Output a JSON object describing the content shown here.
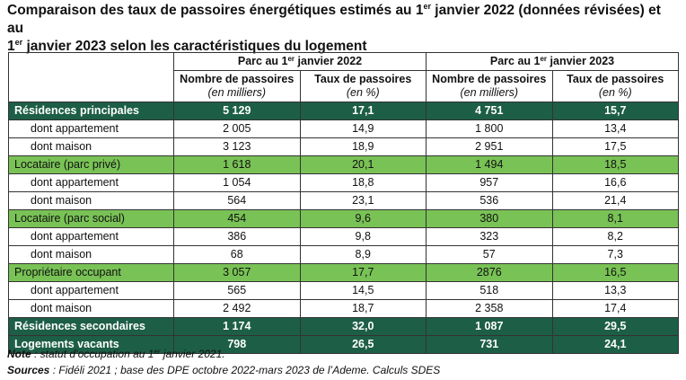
{
  "title": {
    "part1": "Comparaison des taux de passoires énergétiques estimés au 1",
    "sup1": "er",
    "part2": " janvier 2022 (données révisées) et au",
    "part3": "1",
    "sup2": "er",
    "part4": " janvier 2023 selon les caractéristiques du logement"
  },
  "header": {
    "group_2022": {
      "pre": "Parc au 1",
      "sup": "er",
      "post": " janvier 2022"
    },
    "group_2023": {
      "pre": "Parc au 1",
      "sup": "er",
      "post": " janvier 2023"
    },
    "col_nombre": "Nombre de passoires",
    "col_nombre_unit": "(en milliers)",
    "col_taux": "Taux de passoires",
    "col_taux_unit": "(en %)"
  },
  "rows": [
    {
      "label": "Résidences principales",
      "v": [
        "5 129",
        "17,1",
        "4 751",
        "15,7"
      ]
    },
    {
      "label": "dont appartement",
      "v": [
        "2 005",
        "14,9",
        "1 800",
        "13,4"
      ]
    },
    {
      "label": "dont maison",
      "v": [
        "3 123",
        "18,9",
        "2 951",
        "17,5"
      ]
    },
    {
      "label": "Locataire (parc privé)",
      "v": [
        "1 618",
        "20,1",
        "1 494",
        "18,5"
      ]
    },
    {
      "label": "dont appartement",
      "v": [
        "1 054",
        "18,8",
        "957",
        "16,6"
      ]
    },
    {
      "label": "dont maison",
      "v": [
        "564",
        "23,1",
        "536",
        "21,4"
      ]
    },
    {
      "label": "Locataire (parc social)",
      "v": [
        "454",
        "9,6",
        "380",
        "8,1"
      ]
    },
    {
      "label": "dont appartement",
      "v": [
        "386",
        "9,8",
        "323",
        "8,2"
      ]
    },
    {
      "label": "dont maison",
      "v": [
        "68",
        "8,9",
        "57",
        "7,3"
      ]
    },
    {
      "label": "Propriétaire occupant",
      "v": [
        "3 057",
        "17,7",
        "2876",
        "16,5"
      ]
    },
    {
      "label": "dont appartement",
      "v": [
        "565",
        "14,5",
        "518",
        "13,3"
      ]
    },
    {
      "label": "dont maison",
      "v": [
        "2 492",
        "18,7",
        "2 358",
        "17,4"
      ]
    },
    {
      "label": "Résidences secondaires",
      "v": [
        "1 174",
        "32,0",
        "1 087",
        "29,5"
      ]
    },
    {
      "label": "Logements vacants",
      "v": [
        "798",
        "26,5",
        "731",
        "24,1"
      ]
    }
  ],
  "notes": {
    "note_label": "Note",
    "note_text_pre": " : statut d’occupation au 1",
    "note_sup": "er",
    "note_text_post": " janvier 2021.",
    "sources_label": "Sources",
    "sources_text": " : Fidéli 2021 ; base des DPE octobre 2022-mars 2023 de l’Ademe. Calculs SDES"
  },
  "colors": {
    "dark_green": "#1d5e47",
    "light_green": "#79c256"
  }
}
